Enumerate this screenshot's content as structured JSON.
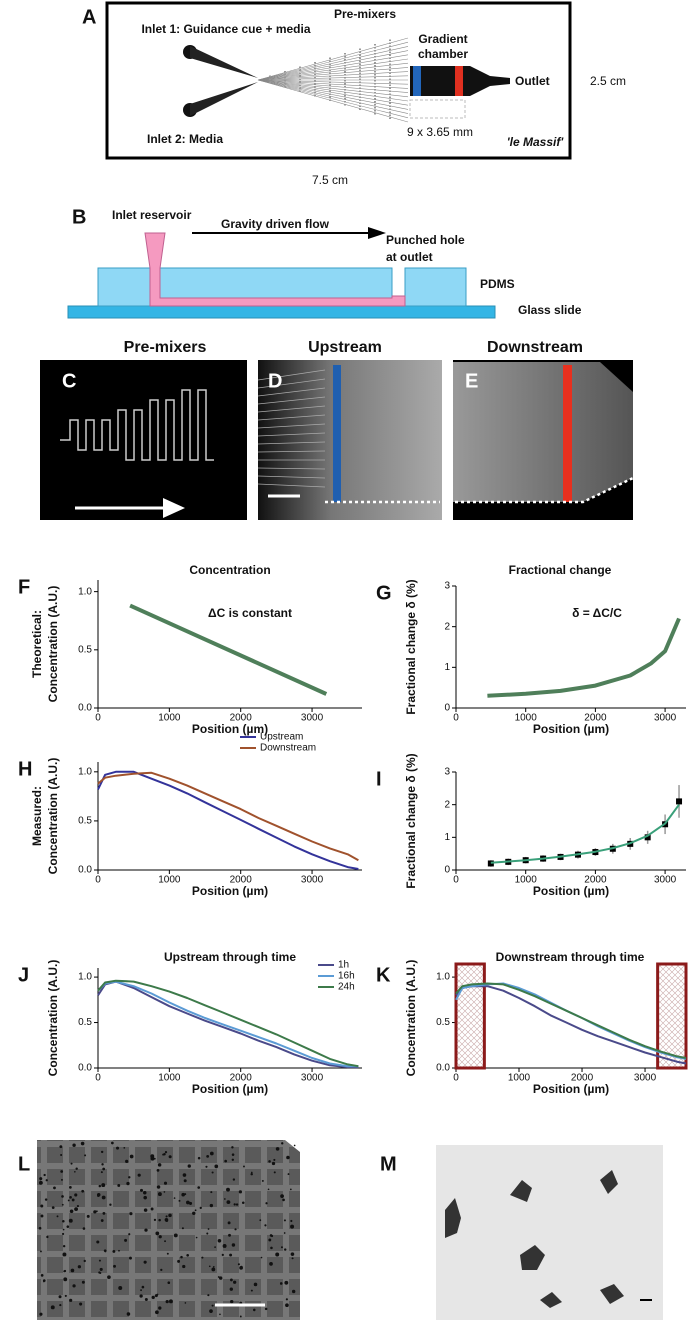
{
  "diagram_a": {
    "letter": "A",
    "inlet_1": "Inlet 1: Guidance cue + media",
    "pre_mixers": "Pre-mixers",
    "gradient_chamber": [
      "Gradient",
      "chamber"
    ],
    "outlet": "Outlet",
    "height": "2.5 cm",
    "inlet_2": "Inlet 2: Media",
    "chamber_size": "9 x 3.65 mm",
    "name": "'le Massif'",
    "width": "7.5 cm"
  },
  "diagram_b": {
    "letter": "B",
    "inlet_reservoir": "Inlet reservoir",
    "flow": "Gravity driven flow",
    "punched_hole": [
      "Punched hole",
      "at outlet"
    ],
    "pdms": "PDMS",
    "glass_slide": "Glass slide"
  },
  "images": [
    {
      "letter": "C",
      "title": "Pre-mixers"
    },
    {
      "letter": "D",
      "title": "Upstream"
    },
    {
      "letter": "E",
      "title": "Downstream"
    },
    {
      "letter": "L"
    },
    {
      "letter": "M"
    }
  ],
  "chart_data": [
    {
      "type": "line",
      "panel": "F",
      "title": "Concentration",
      "row_label": "Theoretical:",
      "ylabel": "Concentration (A.U.)",
      "xlabel": "Position (µm)",
      "annotation": "ΔC is constant",
      "xlim": [
        0,
        3700
      ],
      "xticks": [
        0,
        1000,
        2000,
        3000
      ],
      "ylim": [
        0,
        1.1
      ],
      "yticks": [
        {
          "value": 0,
          "label": "0.0"
        },
        0.5,
        {
          "value": 1,
          "label": "1.0"
        }
      ],
      "x": [
        450,
        3200
      ],
      "series": [
        {
          "color": "#4f7f5a",
          "values": [
            0.88,
            0.12
          ]
        }
      ]
    },
    {
      "type": "line",
      "panel": "G",
      "title": "Fractional change",
      "ylabel": "Fractional change δ (%)",
      "xlabel": "Position (µm)",
      "annotation": "δ = ΔC/C",
      "xlim": [
        0,
        3300
      ],
      "xticks": [
        0,
        1000,
        2000,
        3000
      ],
      "ylim": [
        0,
        3
      ],
      "yticks": [
        0,
        1,
        2,
        3
      ],
      "x": [
        450,
        1000,
        1500,
        2000,
        2500,
        2800,
        3000,
        3200
      ],
      "series": [
        {
          "color": "#4f7f5a",
          "values": [
            0.3,
            0.35,
            0.42,
            0.55,
            0.8,
            1.1,
            1.4,
            2.2
          ]
        }
      ]
    },
    {
      "type": "line",
      "panel": "H",
      "row_label": "Measured:",
      "ylabel": "Concentration (A.U.)",
      "xlabel": "Position (µm)",
      "xlim": [
        0,
        3700
      ],
      "xticks": [
        0,
        1000,
        2000,
        3000
      ],
      "ylim": [
        0,
        1.1
      ],
      "yticks": [
        {
          "value": 0,
          "label": "0.0"
        },
        0.5,
        {
          "value": 1,
          "label": "1.0"
        }
      ],
      "x": [
        0,
        100,
        250,
        500,
        750,
        1000,
        1250,
        1500,
        1750,
        2000,
        2250,
        2500,
        2750,
        3000,
        3250,
        3500,
        3650
      ],
      "series": [
        {
          "name": "Upstream",
          "color": "#33339a",
          "values": [
            0.82,
            0.97,
            1.0,
            1.0,
            0.93,
            0.86,
            0.78,
            0.69,
            0.6,
            0.51,
            0.42,
            0.33,
            0.24,
            0.16,
            0.09,
            0.03,
            0.01
          ]
        },
        {
          "name": "Downstream",
          "color": "#a0522d",
          "values": [
            0.88,
            0.94,
            0.96,
            0.98,
            0.99,
            0.93,
            0.86,
            0.78,
            0.7,
            0.62,
            0.53,
            0.45,
            0.37,
            0.29,
            0.22,
            0.16,
            0.1
          ]
        }
      ]
    },
    {
      "type": "scatter",
      "panel": "I",
      "ylabel": "Fractional change δ (%)",
      "xlabel": "Position (µm)",
      "xlim": [
        0,
        3300
      ],
      "xticks": [
        0,
        1000,
        2000,
        3000
      ],
      "ylim": [
        0,
        3
      ],
      "yticks": [
        0,
        1,
        2,
        3
      ],
      "x": [
        500,
        750,
        1000,
        1250,
        1500,
        1750,
        2000,
        2250,
        2500,
        2750,
        3000,
        3200
      ],
      "series": [
        {
          "color": "#000000",
          "values": [
            0.2,
            0.25,
            0.3,
            0.35,
            0.4,
            0.47,
            0.55,
            0.65,
            0.8,
            1.0,
            1.4,
            2.1
          ],
          "errors": [
            0.1,
            0.1,
            0.1,
            0.1,
            0.1,
            0.12,
            0.12,
            0.15,
            0.18,
            0.2,
            0.3,
            0.5
          ]
        },
        {
          "color": "#3aa07a",
          "values": [
            0.22,
            0.26,
            0.3,
            0.35,
            0.41,
            0.48,
            0.56,
            0.67,
            0.82,
            1.05,
            1.42,
            2.0
          ]
        }
      ]
    },
    {
      "type": "line",
      "panel": "J",
      "title": "Upstream through time",
      "ylabel": "Concentration (A.U.)",
      "xlabel": "Position (µm)",
      "xlim": [
        0,
        3700
      ],
      "xticks": [
        0,
        1000,
        2000,
        3000
      ],
      "ylim": [
        0,
        1.1
      ],
      "yticks": [
        {
          "value": 0,
          "label": "0.0"
        },
        0.5,
        {
          "value": 1,
          "label": "1.0"
        }
      ],
      "x": [
        0,
        100,
        250,
        500,
        750,
        1000,
        1250,
        1500,
        1750,
        2000,
        2250,
        2500,
        2750,
        3000,
        3250,
        3500,
        3650
      ],
      "series": [
        {
          "name": "1h",
          "color": "#4a4a8a",
          "values": [
            0.8,
            0.92,
            0.95,
            0.88,
            0.78,
            0.68,
            0.6,
            0.52,
            0.45,
            0.38,
            0.3,
            0.23,
            0.15,
            0.08,
            0.03,
            0.01,
            0.01
          ]
        },
        {
          "name": "16h",
          "color": "#5b9bd5",
          "values": [
            0.85,
            0.93,
            0.95,
            0.9,
            0.82,
            0.72,
            0.63,
            0.55,
            0.48,
            0.41,
            0.34,
            0.27,
            0.19,
            0.11,
            0.05,
            0.02,
            0.02
          ]
        },
        {
          "name": "24h",
          "color": "#3d7a4a",
          "values": [
            0.85,
            0.94,
            0.96,
            0.95,
            0.9,
            0.84,
            0.77,
            0.69,
            0.61,
            0.53,
            0.45,
            0.37,
            0.28,
            0.19,
            0.1,
            0.04,
            0.02
          ]
        }
      ]
    },
    {
      "type": "line",
      "panel": "K",
      "title": "Downstream through time",
      "ylabel": "Concentration (A.U.)",
      "xlabel": "Position (µm)",
      "xlim": [
        0,
        3650
      ],
      "xticks": [
        0,
        1000,
        2000,
        3000
      ],
      "ylim": [
        0,
        1.1
      ],
      "yticks": [
        {
          "value": 0,
          "label": "0.0"
        },
        0.5,
        {
          "value": 1,
          "label": "1.0"
        }
      ],
      "highlights": [
        [
          0,
          450
        ],
        [
          3200,
          3650
        ]
      ],
      "highlight_color": "#8b1a1a",
      "x": [
        0,
        100,
        250,
        500,
        750,
        1000,
        1250,
        1500,
        1750,
        2000,
        2250,
        2500,
        2750,
        3000,
        3250,
        3500,
        3650
      ],
      "series": [
        {
          "color": "#4a4a8a",
          "values": [
            0.8,
            0.88,
            0.9,
            0.9,
            0.85,
            0.77,
            0.68,
            0.58,
            0.5,
            0.42,
            0.35,
            0.29,
            0.23,
            0.17,
            0.12,
            0.07,
            0.05
          ]
        },
        {
          "color": "#5b9bd5",
          "values": [
            0.75,
            0.88,
            0.9,
            0.92,
            0.93,
            0.88,
            0.81,
            0.72,
            0.63,
            0.55,
            0.46,
            0.38,
            0.3,
            0.23,
            0.17,
            0.12,
            0.1
          ]
        },
        {
          "color": "#3d7a4a",
          "values": [
            0.82,
            0.9,
            0.92,
            0.93,
            0.92,
            0.86,
            0.79,
            0.71,
            0.63,
            0.55,
            0.47,
            0.39,
            0.31,
            0.24,
            0.18,
            0.13,
            0.11
          ]
        }
      ]
    }
  ]
}
